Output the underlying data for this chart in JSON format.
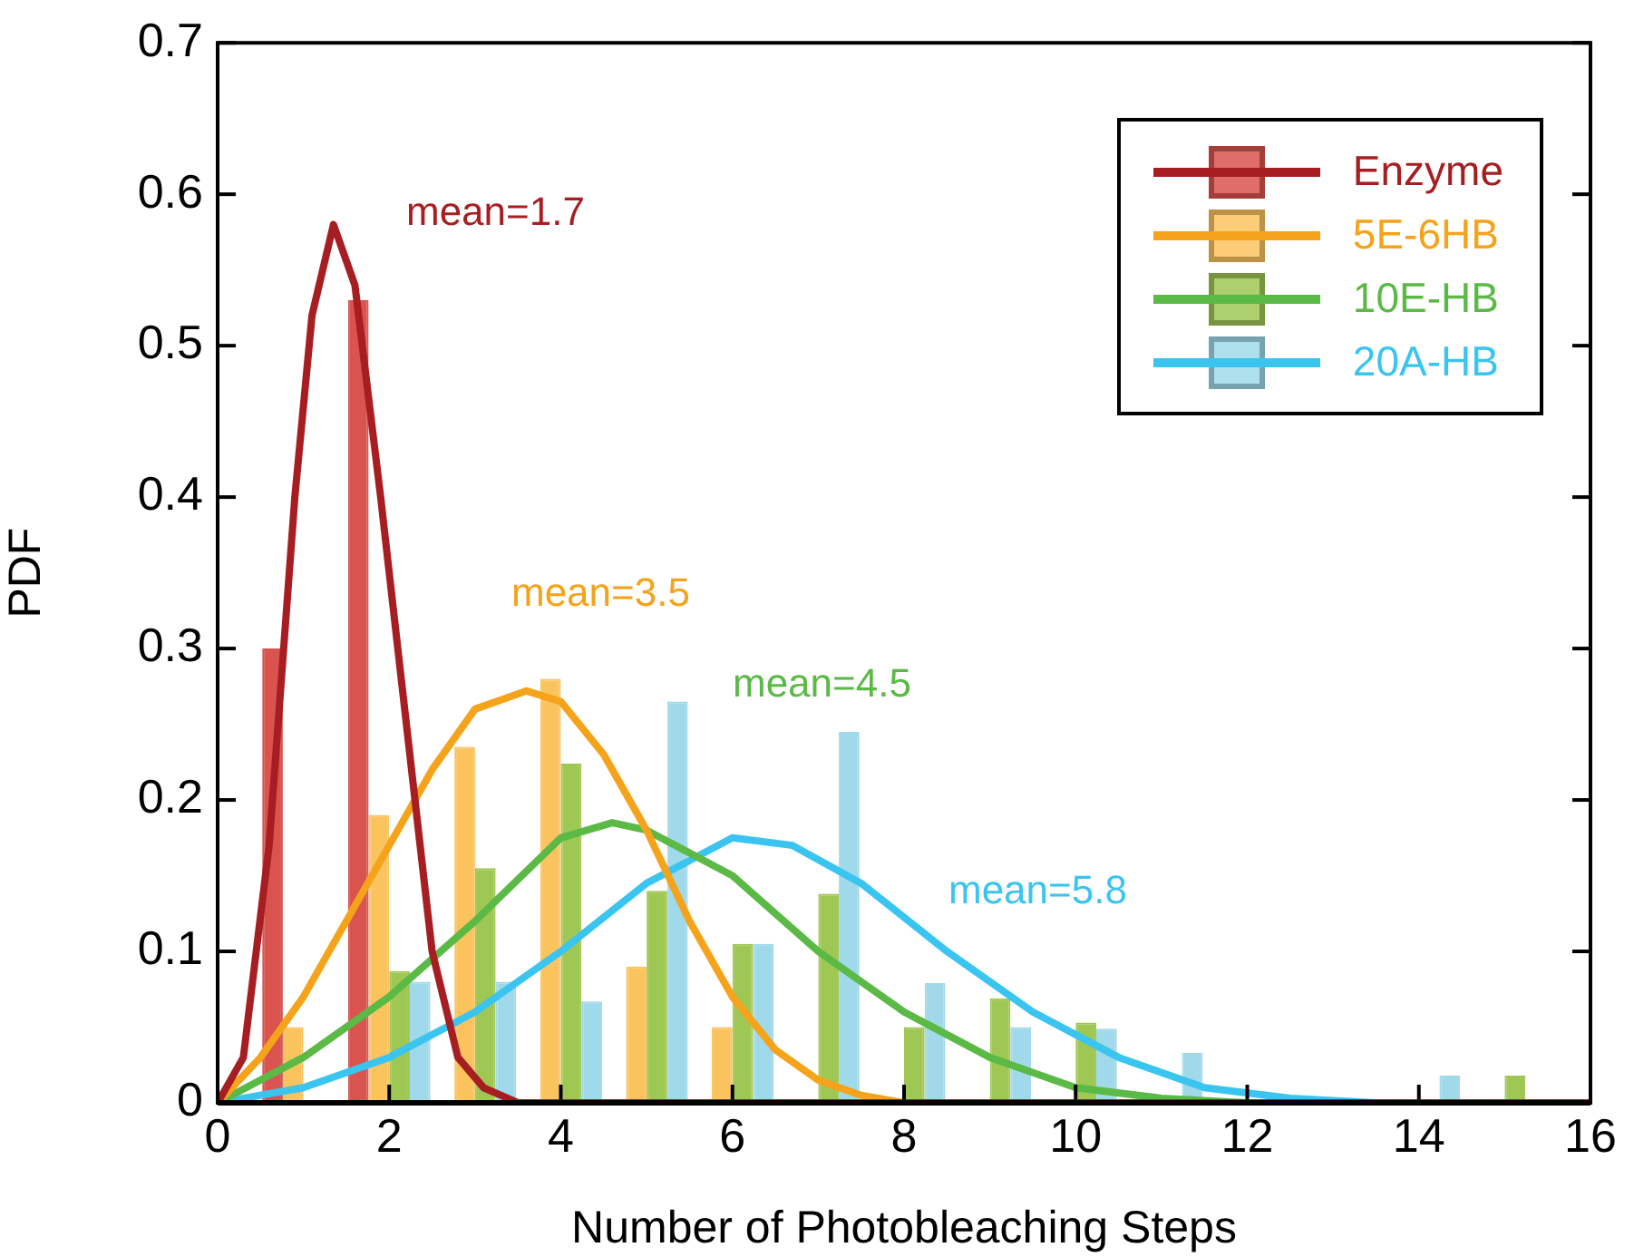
{
  "chart_data": {
    "type": "histogram",
    "xlabel": "Number of Photobleaching Steps",
    "ylabel": "PDF",
    "xlim": [
      0,
      16
    ],
    "xticks": [
      0,
      2,
      4,
      6,
      8,
      10,
      12,
      14,
      16
    ],
    "ylim": [
      0,
      0.7
    ],
    "yticks": [
      0,
      0.1,
      0.2,
      0.3,
      0.4,
      0.5,
      0.6,
      0.7
    ],
    "grid": false,
    "legend": "top right",
    "marker": "none",
    "series": [
      {
        "name": "Enzyme",
        "color": "#d9534f",
        "bins": [
          0.5,
          1.5,
          2.5
        ],
        "values": [
          0.3,
          0.53
        ]
      },
      {
        "name": "5E-6HB",
        "color": "#fbc35e",
        "bins": [
          0.5,
          1.5,
          2.5,
          3.5,
          4.5,
          5.5,
          6.5,
          7.5
        ],
        "values": [
          0.05,
          0.19,
          0.235,
          0.28,
          0.09,
          0.05,
          null
        ]
      },
      {
        "name": "10E-HB",
        "color": "#9fc754",
        "bins": [
          0.5,
          1.5,
          2.5,
          3.5,
          4.5,
          5.5,
          6.5,
          7.5,
          8.5,
          9.5,
          10.5,
          11.5,
          12.5,
          13.5,
          14.5,
          15.5
        ],
        "values": [
          0,
          0.087,
          0.155,
          0.224,
          0.14,
          0.105,
          0.138,
          0.05,
          0.069,
          0.053,
          0,
          0,
          0,
          0,
          0.018
        ]
      },
      {
        "name": "20A-HB",
        "color": "#9fd9ea",
        "bins": [
          0.5,
          1.5,
          2.5,
          3.5,
          4.5,
          5.5,
          6.5,
          7.5,
          8.5,
          9.5,
          10.5,
          11.5,
          12.5,
          13.5,
          14.5
        ],
        "values": [
          0,
          0.08,
          0.08,
          0.067,
          0.265,
          0.105,
          0.245,
          0.079,
          0.05,
          0.049,
          0.033,
          0,
          0,
          0.018
        ]
      },
      {
        "type": "line",
        "color": "#a61e22",
        "x": [
          0,
          0.3,
          0.6,
          0.9,
          1.1,
          1.35,
          1.6,
          1.9,
          2.2,
          2.5,
          2.8,
          3.1,
          3.5,
          4,
          16
        ],
        "values": [
          0,
          0.03,
          0.17,
          0.4,
          0.52,
          0.58,
          0.54,
          0.4,
          0.25,
          0.1,
          0.03,
          0.01,
          0,
          0,
          0
        ]
      },
      {
        "type": "line",
        "color": "#f5a31a",
        "x": [
          0,
          0.5,
          1,
          1.5,
          2,
          2.5,
          3,
          3.6,
          4,
          4.5,
          5,
          5.5,
          6,
          6.5,
          7,
          7.5,
          8,
          16
        ],
        "values": [
          0,
          0.03,
          0.07,
          0.12,
          0.17,
          0.22,
          0.26,
          0.272,
          0.265,
          0.23,
          0.18,
          0.12,
          0.07,
          0.035,
          0.015,
          0.005,
          0,
          0
        ]
      },
      {
        "type": "line",
        "color": "#5bb946",
        "x": [
          0,
          1,
          2,
          3,
          4,
          4.6,
          5,
          6,
          7,
          8,
          9,
          10,
          11,
          12,
          16
        ],
        "values": [
          0,
          0.03,
          0.07,
          0.12,
          0.175,
          0.185,
          0.18,
          0.15,
          0.1,
          0.06,
          0.03,
          0.01,
          0.003,
          0,
          0
        ]
      },
      {
        "type": "line",
        "color": "#3ac4f0",
        "x": [
          0,
          1,
          2,
          3,
          4,
          5,
          6,
          6.7,
          7.5,
          8.5,
          9.5,
          10.5,
          11.5,
          12.5,
          13.5,
          16
        ],
        "values": [
          0,
          0.01,
          0.03,
          0.06,
          0.1,
          0.145,
          0.175,
          0.17,
          0.145,
          0.1,
          0.06,
          0.03,
          0.01,
          0.003,
          0,
          0
        ]
      }
    ],
    "annotations": [
      "mean=1.7",
      "mean=3.5",
      "mean=4.5",
      "mean=5.8"
    ]
  }
}
